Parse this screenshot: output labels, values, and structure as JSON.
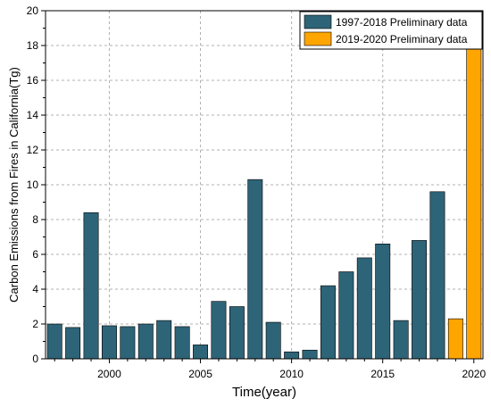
{
  "chart_data": {
    "type": "bar",
    "xlabel": "Time(year)",
    "ylabel": "Carbon Emissions from Fires in California(Tg)",
    "xlim": [
      1996.5,
      2020.5
    ],
    "ylim": [
      0,
      20
    ],
    "x_ticks": [
      2000,
      2005,
      2010,
      2015,
      2020
    ],
    "y_ticks": [
      0,
      2,
      4,
      6,
      8,
      10,
      12,
      14,
      16,
      18,
      20
    ],
    "grid": true,
    "legend_position": "top-right",
    "series": [
      {
        "name": "1997-2018 Preliminary data",
        "color": "#2e6478",
        "x": [
          1997,
          1998,
          1999,
          2000,
          2001,
          2002,
          2003,
          2004,
          2005,
          2006,
          2007,
          2008,
          2009,
          2010,
          2011,
          2012,
          2013,
          2014,
          2015,
          2016,
          2017,
          2018
        ],
        "values": [
          2.0,
          1.8,
          8.4,
          1.9,
          1.85,
          2.0,
          2.2,
          1.85,
          0.8,
          3.3,
          3.0,
          10.3,
          2.1,
          0.4,
          0.5,
          4.2,
          5.0,
          5.8,
          6.6,
          2.2,
          6.8,
          9.6
        ]
      },
      {
        "name": "2019-2020 Preliminary data",
        "color": "#ffa500",
        "x": [
          2019,
          2020
        ],
        "values": [
          2.3,
          18.0
        ]
      }
    ]
  }
}
